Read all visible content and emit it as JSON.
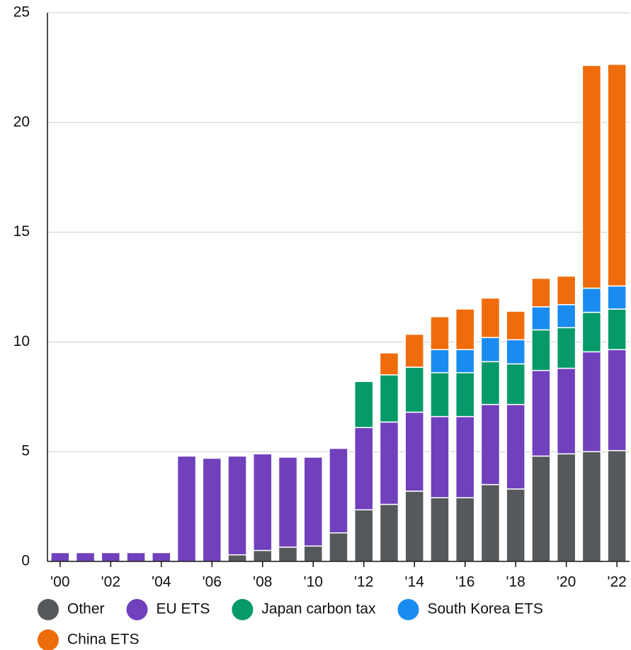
{
  "chart_data": {
    "type": "stacked_bar",
    "categories": [
      "'00",
      null,
      "'02",
      null,
      "'04",
      null,
      "'06",
      null,
      "'08",
      null,
      "'10",
      null,
      "'12",
      null,
      "'14",
      null,
      "'16",
      null,
      "'18",
      null,
      "'20",
      null,
      "'22"
    ],
    "series": [
      {
        "name": "Other",
        "color": "#55595c",
        "values": [
          0,
          0,
          0,
          0,
          0,
          0,
          0,
          0.3,
          0.5,
          0.65,
          0.7,
          1.3,
          2.35,
          2.6,
          3.2,
          2.9,
          2.9,
          3.5,
          3.3,
          4.8,
          4.9,
          5.0,
          5.05
        ]
      },
      {
        "name": "EU ETS",
        "color": "#7040bd",
        "values": [
          0.4,
          0.4,
          0.4,
          0.4,
          0.4,
          4.8,
          4.7,
          4.5,
          4.4,
          4.1,
          4.05,
          3.85,
          3.75,
          3.75,
          3.6,
          3.7,
          3.7,
          3.65,
          3.85,
          3.9,
          3.9,
          4.55,
          4.6
        ]
      },
      {
        "name": "Japan carbon tax",
        "color": "#069a6b",
        "values": [
          0,
          0,
          0,
          0,
          0,
          0,
          0,
          0,
          0,
          0,
          0,
          0,
          2.1,
          2.15,
          2.05,
          2.0,
          2.0,
          1.95,
          1.85,
          1.85,
          1.85,
          1.8,
          1.85
        ]
      },
      {
        "name": "South Korea ETS",
        "color": "#1a8cf0",
        "values": [
          0,
          0,
          0,
          0,
          0,
          0,
          0,
          0,
          0,
          0,
          0,
          0,
          0,
          0,
          0,
          1.05,
          1.05,
          1.1,
          1.1,
          1.05,
          1.05,
          1.1,
          1.05
        ]
      },
      {
        "name": "China ETS",
        "color": "#ef6c0c",
        "values": [
          0,
          0,
          0,
          0,
          0,
          0,
          0,
          0,
          0,
          0,
          0,
          0,
          0,
          1.0,
          1.5,
          1.5,
          1.85,
          1.8,
          1.3,
          1.3,
          1.3,
          10.15,
          10.1
        ]
      }
    ],
    "ylim": [
      0,
      25
    ],
    "yticks": [
      0,
      5,
      10,
      15,
      20,
      25
    ],
    "grid": true
  }
}
